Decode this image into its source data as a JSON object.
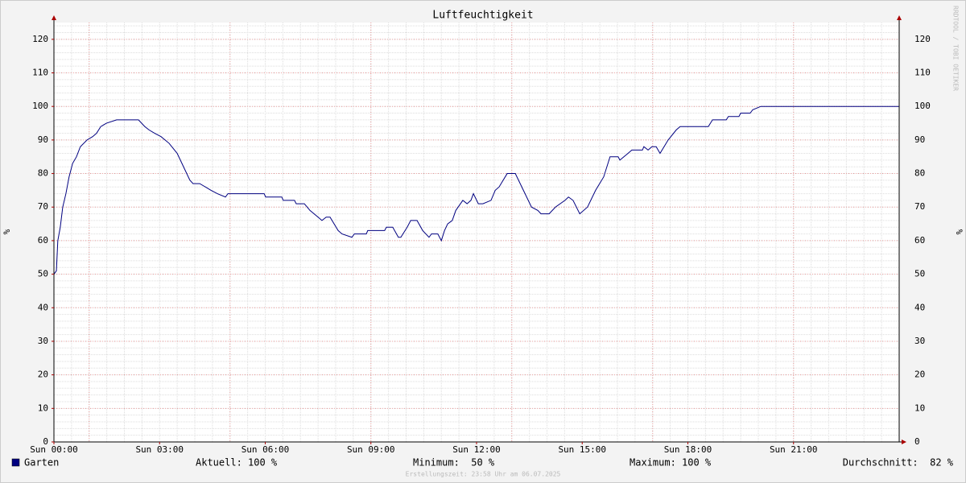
{
  "chart_data": {
    "type": "line",
    "title": "Luftfeuchtigkeit",
    "y_label": "%",
    "watermark": "RRDTOOL / TOBI OETIKER",
    "xlim": [
      0,
      24
    ],
    "ylim": [
      0,
      125
    ],
    "xticks": [
      {
        "value": 0,
        "label": "Sun 00:00"
      },
      {
        "value": 3,
        "label": "Sun 03:00"
      },
      {
        "value": 6,
        "label": "Sun 06:00"
      },
      {
        "value": 9,
        "label": "Sun 09:00"
      },
      {
        "value": 12,
        "label": "Sun 12:00"
      },
      {
        "value": 15,
        "label": "Sun 15:00"
      },
      {
        "value": 18,
        "label": "Sun 18:00"
      },
      {
        "value": 21,
        "label": "Sun 21:00"
      }
    ],
    "yticks": [
      0,
      10,
      20,
      30,
      40,
      50,
      60,
      70,
      80,
      90,
      100,
      110,
      120
    ],
    "x_major_grid": [
      1,
      5,
      9,
      13,
      17,
      21
    ],
    "x_minor_step": 0.5,
    "y_minor_step": 2,
    "grid": true,
    "x": [
      0,
      0.07,
      0.11,
      0.18,
      0.25,
      0.34,
      0.43,
      0.53,
      0.64,
      0.75,
      0.94,
      1.1,
      1.21,
      1.33,
      1.49,
      1.78,
      2.4,
      2.58,
      2.7,
      2.86,
      3.04,
      3.27,
      3.5,
      3.68,
      3.86,
      3.95,
      4.14,
      4.3,
      4.46,
      4.64,
      4.87,
      4.94,
      5.97,
      6.01,
      6.47,
      6.51,
      6.83,
      6.88,
      7.11,
      7.27,
      7.5,
      7.61,
      7.73,
      7.84,
      8.07,
      8.18,
      8.46,
      8.53,
      8.87,
      8.91,
      9.39,
      9.44,
      9.62,
      9.78,
      9.85,
      10.03,
      10.13,
      10.31,
      10.47,
      10.65,
      10.72,
      10.9,
      11.0,
      11.09,
      11.18,
      11.31,
      11.41,
      11.61,
      11.73,
      11.84,
      11.91,
      12.05,
      12.18,
      12.41,
      12.53,
      12.64,
      12.87,
      13.1,
      13.33,
      13.56,
      13.74,
      13.83,
      14.06,
      14.24,
      14.51,
      14.61,
      14.74,
      14.93,
      15.15,
      15.38,
      15.61,
      15.79,
      16.02,
      16.07,
      16.3,
      16.41,
      16.71,
      16.75,
      16.87,
      16.98,
      17.1,
      17.21,
      17.44,
      17.67,
      17.78,
      18.58,
      18.7,
      19.09,
      19.15,
      19.45,
      19.5,
      19.77,
      19.84,
      20.07,
      24
    ],
    "series": [
      {
        "name": "Garten",
        "color": "#000080",
        "values": [
          50,
          51,
          60,
          64,
          70,
          74,
          79,
          83,
          85,
          88,
          90,
          91,
          92,
          94,
          95,
          96,
          96,
          94,
          93,
          92,
          91,
          89,
          86,
          82,
          78,
          77,
          77,
          76,
          75,
          74,
          73,
          74,
          74,
          73,
          73,
          72,
          72,
          71,
          71,
          69,
          67,
          66,
          67,
          67,
          63,
          62,
          61,
          62,
          62,
          63,
          63,
          64,
          64,
          61,
          61,
          64,
          66,
          66,
          63,
          61,
          62,
          62,
          60,
          63,
          65,
          66,
          69,
          72,
          71,
          72,
          74,
          71,
          71,
          72,
          75,
          76,
          80,
          80,
          75,
          70,
          69,
          68,
          68,
          70,
          72,
          73,
          72,
          68,
          70,
          75,
          79,
          85,
          85,
          84,
          86,
          87,
          87,
          88,
          87,
          88,
          88,
          86,
          90,
          93,
          94,
          94,
          96,
          96,
          97,
          97,
          98,
          98,
          99,
          100,
          100
        ]
      }
    ],
    "legend_stats": [
      "Aktuell: 100 %",
      "Minimum:  50 %",
      "Maximum: 100 %",
      "Durchschnitt:  82 %"
    ],
    "footer": "Erstellungszeit: 23:58 Uhr am 06.07.2025"
  }
}
